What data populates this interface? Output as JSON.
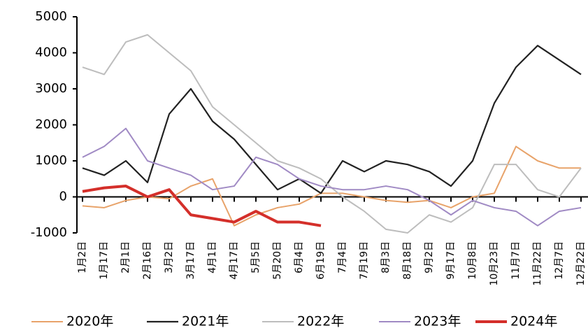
{
  "chart_data": {
    "type": "line",
    "categories": [
      "1月2日",
      "1月17日",
      "2月1日",
      "2月16日",
      "3月2日",
      "3月17日",
      "4月1日",
      "4月17日",
      "5月5日",
      "5月20日",
      "6月4日",
      "6月19日",
      "7月4日",
      "7月19日",
      "8月3日",
      "8月18日",
      "9月2日",
      "9月17日",
      "10月8日",
      "10月23日",
      "11月7日",
      "11月22日",
      "12月7日",
      "12月22日"
    ],
    "series": [
      {
        "name": "2020年",
        "color": "#e8a36a",
        "width": 2,
        "values": [
          -250,
          -300,
          -100,
          0,
          -50,
          300,
          500,
          -800,
          -500,
          -300,
          -200,
          100,
          100,
          0,
          -100,
          -150,
          -100,
          -300,
          0,
          100,
          1400,
          1000,
          800,
          800
        ]
      },
      {
        "name": "2021年",
        "color": "#222222",
        "width": 2.2,
        "values": [
          800,
          600,
          1000,
          400,
          2300,
          3000,
          2100,
          1600,
          900,
          200,
          500,
          100,
          1000,
          700,
          1000,
          900,
          700,
          300,
          1000,
          2600,
          3600,
          4200,
          3800,
          3400
        ]
      },
      {
        "name": "2022年",
        "color": "#bdbdbd",
        "width": 2,
        "values": [
          3600,
          3400,
          4300,
          4500,
          4000,
          3500,
          2500,
          2000,
          1500,
          1000,
          800,
          500,
          0,
          -400,
          -900,
          -1000,
          -500,
          -700,
          -300,
          900,
          900,
          200,
          0,
          800
        ]
      },
      {
        "name": "2023年",
        "color": "#a08ac4",
        "width": 2,
        "values": [
          1100,
          1400,
          1900,
          1000,
          800,
          600,
          200,
          300,
          1100,
          900,
          500,
          300,
          200,
          200,
          300,
          200,
          -100,
          -500,
          -100,
          -300,
          -400,
          -800,
          -400,
          -300
        ]
      },
      {
        "name": "2024年",
        "color": "#d42f2a",
        "width": 4,
        "values": [
          150,
          250,
          300,
          0,
          200,
          -500,
          -600,
          -700,
          -400,
          -700,
          -700,
          -800,
          null,
          null,
          null,
          null,
          null,
          null,
          null,
          null,
          null,
          null,
          null,
          null
        ]
      }
    ],
    "ylim": [
      -1000,
      5000
    ],
    "yticks": [
      -1000,
      0,
      1000,
      2000,
      3000,
      4000,
      5000
    ]
  }
}
